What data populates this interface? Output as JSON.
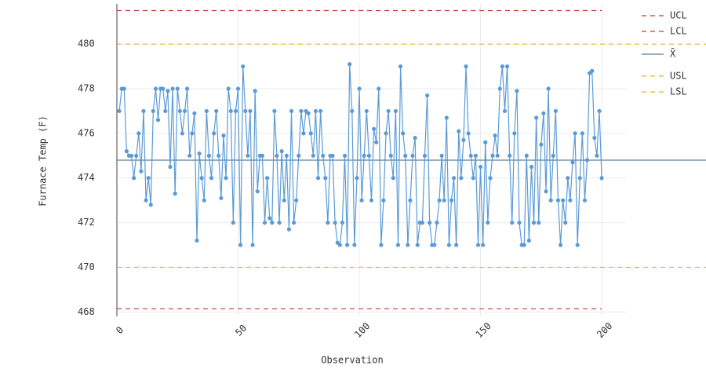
{
  "chart_data": {
    "type": "line",
    "y_label": "Furnace Temp (F)",
    "x_label": "Observation",
    "xlim": [
      0,
      210
    ],
    "ylim": [
      467.8,
      481.8
    ],
    "xticks": [
      0,
      50,
      100,
      150,
      200
    ],
    "yticks": [
      468,
      470,
      472,
      474,
      476,
      478,
      480
    ],
    "grid": true,
    "x": [
      1,
      2,
      3,
      4,
      5,
      6,
      7,
      8,
      9,
      10,
      11,
      12,
      13,
      14,
      15,
      16,
      17,
      18,
      19,
      20,
      21,
      22,
      23,
      24,
      25,
      26,
      27,
      28,
      29,
      30,
      31,
      32,
      33,
      34,
      35,
      36,
      37,
      38,
      39,
      40,
      41,
      42,
      43,
      44,
      45,
      46,
      47,
      48,
      49,
      50,
      51,
      52,
      53,
      54,
      55,
      56,
      57,
      58,
      59,
      60,
      61,
      62,
      63,
      64,
      65,
      66,
      67,
      68,
      69,
      70,
      71,
      72,
      73,
      74,
      75,
      76,
      77,
      78,
      79,
      80,
      81,
      82,
      83,
      84,
      85,
      86,
      87,
      88,
      89,
      90,
      91,
      92,
      93,
      94,
      95,
      96,
      97,
      98,
      99,
      100,
      101,
      102,
      103,
      104,
      105,
      106,
      107,
      108,
      109,
      110,
      111,
      112,
      113,
      114,
      115,
      116,
      117,
      118,
      119,
      120,
      121,
      122,
      123,
      124,
      125,
      126,
      127,
      128,
      129,
      130,
      131,
      132,
      133,
      134,
      135,
      136,
      137,
      138,
      139,
      140,
      141,
      142,
      143,
      144,
      145,
      146,
      147,
      148,
      149,
      150,
      151,
      152,
      153,
      154,
      155,
      156,
      157,
      158,
      159,
      160,
      161,
      162,
      163,
      164,
      165,
      166,
      167,
      168,
      169,
      170,
      171,
      172,
      173,
      174,
      175,
      176,
      177,
      178,
      179,
      180,
      181,
      182,
      183,
      184,
      185,
      186,
      187,
      188,
      189,
      190,
      191,
      192,
      193,
      194,
      195,
      196,
      197,
      198,
      199,
      200
    ],
    "series": [
      {
        "color": "#5b9bd5",
        "values": [
          477,
          478,
          478,
          475.2,
          475,
          475,
          474,
          475,
          476,
          474.3,
          477,
          473,
          474,
          472.8,
          477,
          478,
          476.6,
          478,
          478,
          477,
          477.9,
          474.5,
          478,
          473.3,
          478,
          477,
          476,
          477,
          478,
          475,
          476,
          476.9,
          471.2,
          475.1,
          474,
          473,
          477,
          475,
          474,
          476,
          477,
          475,
          473.1,
          475.9,
          474,
          478,
          477,
          472,
          477,
          478,
          471,
          479,
          477,
          475,
          477,
          471,
          477.9,
          473.4,
          475,
          475,
          472,
          474,
          472.2,
          472,
          477,
          475,
          472,
          475.2,
          473,
          475,
          471.7,
          477,
          472,
          473,
          475,
          477,
          476,
          477,
          476.9,
          476,
          475,
          477,
          474,
          477,
          475,
          474,
          472,
          475,
          475,
          472,
          471.1,
          471,
          472,
          475,
          471,
          479.1,
          477,
          471,
          474,
          478,
          473,
          475,
          477,
          475,
          473,
          476.2,
          475.6,
          478,
          471,
          473,
          476,
          477,
          475,
          474,
          477,
          471,
          479,
          476,
          475,
          471,
          473,
          475,
          475.8,
          471,
          472,
          472,
          475,
          477.7,
          472,
          471,
          471,
          472,
          473,
          475,
          473,
          476.7,
          471,
          473,
          474,
          471,
          476.1,
          474,
          475.7,
          479,
          476,
          475,
          474,
          475,
          471,
          474.5,
          471,
          475.6,
          472,
          474,
          475,
          475.9,
          475,
          478,
          479,
          477,
          479,
          475,
          472,
          476,
          477.9,
          472,
          471,
          471,
          475,
          471.2,
          474.5,
          472,
          476.7,
          472,
          475.5,
          476.9,
          473.4,
          478,
          473,
          475,
          477,
          473,
          471,
          473,
          472,
          474,
          473,
          474.7,
          476,
          471,
          474,
          476,
          473,
          474.8,
          478.7,
          478.8,
          475.8,
          475,
          477,
          474
        ]
      }
    ],
    "reference_lines": [
      {
        "name": "UCL",
        "value": 481.5,
        "color": "#c0392b",
        "dashed": true,
        "x_end": 200
      },
      {
        "name": "LCL",
        "value": 468.14,
        "color": "#c0392b",
        "dashed": true,
        "x_end": 200
      },
      {
        "name": "X̄",
        "value": 474.8,
        "color": "#5a7f9b",
        "dashed": false
      },
      {
        "name": "USL",
        "value": 480,
        "color": "#e6b422",
        "dashed": true
      },
      {
        "name": "LSL",
        "value": 470,
        "color": "#e6b422",
        "dashed": true
      }
    ]
  }
}
